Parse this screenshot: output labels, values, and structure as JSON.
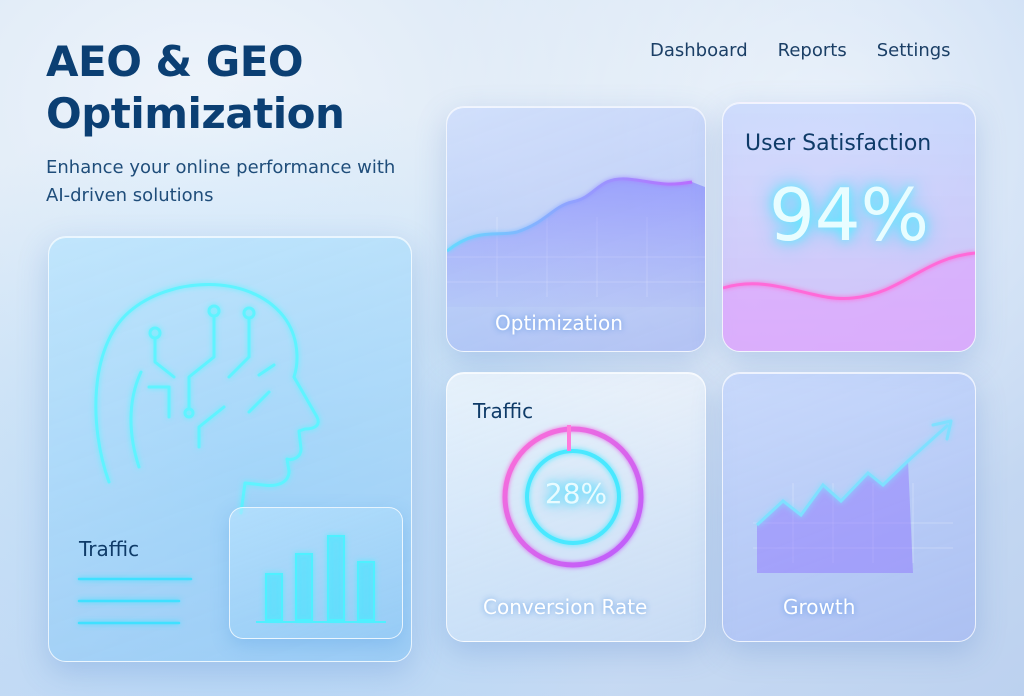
{
  "header": {
    "title": "AEO & GEO Optimization",
    "subtitle": "Enhance your online performance with AI-driven solutions"
  },
  "nav": {
    "items": [
      {
        "label": "Dashboard"
      },
      {
        "label": "Reports"
      },
      {
        "label": "Settings"
      }
    ]
  },
  "cards": {
    "ai": {
      "label": "Traffic",
      "icon": "ai-head-icon"
    },
    "optimization": {
      "label": "Optimization"
    },
    "satisfaction": {
      "label": "User Satisfaction",
      "value": "94%"
    },
    "conversion": {
      "top_label": "Traffic",
      "label": "Conversion Rate",
      "value": "28%",
      "percent": 28
    },
    "growth": {
      "label": "Growth",
      "icon": "trend-up-arrow-icon"
    }
  },
  "colors": {
    "title": "#0b3f73",
    "neon_cyan": "#3fe6ff",
    "neon_purple": "#a85bff",
    "neon_pink": "#ff5ad0"
  }
}
